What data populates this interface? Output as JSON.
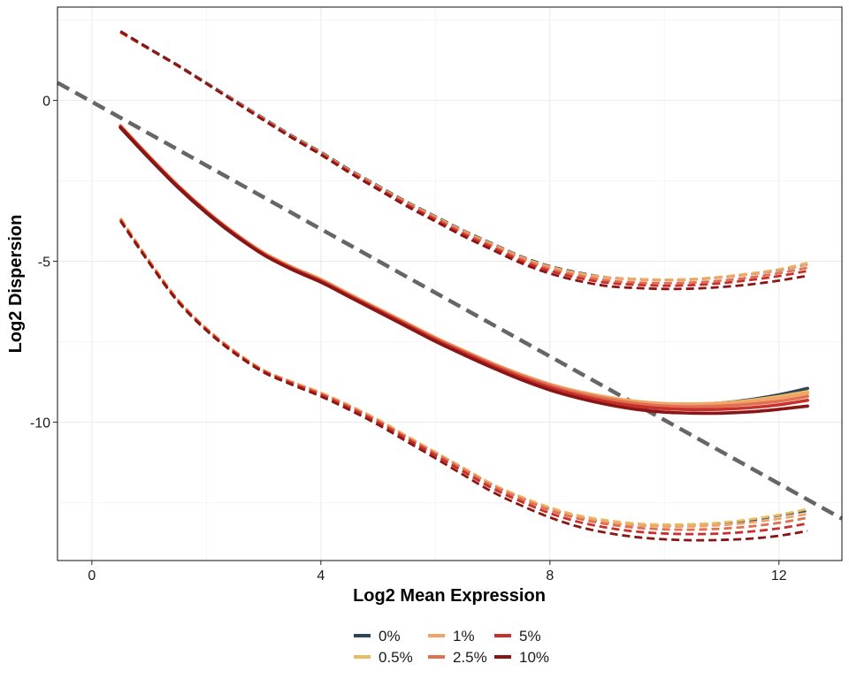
{
  "chart_data": {
    "type": "line",
    "xlabel": "Log2 Mean Expression",
    "ylabel": "Log2 Dispersion",
    "xlim": [
      -0.6,
      13.1
    ],
    "ylim": [
      -14.3,
      2.9
    ],
    "x_ticks": [
      0,
      4,
      8,
      12
    ],
    "x_tick_labels": [
      "0",
      "4",
      "8",
      "12"
    ],
    "y_ticks": [
      0,
      -5,
      -10
    ],
    "y_tick_labels": [
      "0",
      "-5",
      "-10"
    ],
    "grid": true,
    "legend_position": "bottom",
    "reference_line": {
      "style": "dashed",
      "color": "#666666",
      "points": [
        [
          -0.6,
          0.55
        ],
        [
          13.1,
          -13.0
        ]
      ]
    },
    "x": [
      0.5,
      1,
      1.5,
      2,
      2.5,
      3,
      3.5,
      4,
      4.5,
      5,
      5.5,
      6,
      6.5,
      7,
      7.5,
      8,
      8.5,
      9,
      9.5,
      10,
      10.5,
      11,
      11.5,
      12,
      12.5
    ],
    "series": [
      {
        "name": "0%",
        "color": "#2d4557",
        "fit": [
          -0.85,
          -1.8,
          -2.7,
          -3.5,
          -4.2,
          -4.78,
          -5.22,
          -5.6,
          -6.05,
          -6.5,
          -6.95,
          -7.4,
          -7.8,
          -8.2,
          -8.55,
          -8.85,
          -9.08,
          -9.25,
          -9.38,
          -9.45,
          -9.45,
          -9.4,
          -9.3,
          -9.15,
          -8.95
        ],
        "upper": [
          2.15,
          1.62,
          1.1,
          0.55,
          0.0,
          -0.55,
          -1.1,
          -1.6,
          -2.15,
          -2.65,
          -3.15,
          -3.6,
          -4.05,
          -4.45,
          -4.85,
          -5.15,
          -5.35,
          -5.5,
          -5.55,
          -5.58,
          -5.56,
          -5.5,
          -5.4,
          -5.28,
          -5.1
        ],
        "lower": [
          -3.7,
          -5.0,
          -6.2,
          -7.1,
          -7.8,
          -8.4,
          -8.75,
          -9.1,
          -9.5,
          -9.95,
          -10.45,
          -10.95,
          -11.45,
          -11.95,
          -12.35,
          -12.7,
          -12.95,
          -13.12,
          -13.2,
          -13.22,
          -13.2,
          -13.15,
          -13.05,
          -12.9,
          -12.75
        ]
      },
      {
        "name": "0.5%",
        "color": "#eabd63",
        "fit": [
          -0.8,
          -1.75,
          -2.65,
          -3.45,
          -4.15,
          -4.75,
          -5.2,
          -5.58,
          -6.03,
          -6.48,
          -6.92,
          -7.38,
          -7.78,
          -8.18,
          -8.52,
          -8.82,
          -9.05,
          -9.22,
          -9.35,
          -9.42,
          -9.43,
          -9.4,
          -9.32,
          -9.2,
          -9.05
        ],
        "upper": [
          2.12,
          1.6,
          1.08,
          0.53,
          -0.02,
          -0.57,
          -1.12,
          -1.62,
          -2.17,
          -2.67,
          -3.17,
          -3.62,
          -4.07,
          -4.47,
          -4.87,
          -5.17,
          -5.37,
          -5.5,
          -5.55,
          -5.57,
          -5.55,
          -5.48,
          -5.38,
          -5.25,
          -5.05
        ],
        "lower": [
          -3.65,
          -4.97,
          -6.18,
          -7.08,
          -7.8,
          -8.38,
          -8.75,
          -9.08,
          -9.48,
          -9.92,
          -10.43,
          -10.93,
          -11.43,
          -11.93,
          -12.32,
          -12.65,
          -12.9,
          -13.05,
          -13.15,
          -13.18,
          -13.17,
          -13.12,
          -13.02,
          -12.88,
          -12.7
        ]
      },
      {
        "name": "1%",
        "color": "#f0a469",
        "fit": [
          -0.78,
          -1.73,
          -2.63,
          -3.43,
          -4.13,
          -4.73,
          -5.18,
          -5.56,
          -6.02,
          -6.47,
          -6.92,
          -7.37,
          -7.78,
          -8.17,
          -8.52,
          -8.82,
          -9.05,
          -9.23,
          -9.36,
          -9.43,
          -9.44,
          -9.42,
          -9.35,
          -9.25,
          -9.1
        ],
        "upper": [
          2.1,
          1.59,
          1.07,
          0.52,
          -0.03,
          -0.58,
          -1.13,
          -1.63,
          -2.18,
          -2.68,
          -3.18,
          -3.63,
          -4.08,
          -4.48,
          -4.88,
          -5.18,
          -5.38,
          -5.52,
          -5.57,
          -5.59,
          -5.57,
          -5.5,
          -5.4,
          -5.27,
          -5.1
        ],
        "lower": [
          -3.68,
          -4.98,
          -6.19,
          -7.09,
          -7.8,
          -8.39,
          -8.76,
          -9.1,
          -9.5,
          -9.94,
          -10.45,
          -10.95,
          -11.45,
          -11.95,
          -12.34,
          -12.68,
          -12.94,
          -13.1,
          -13.2,
          -13.24,
          -13.24,
          -13.2,
          -13.12,
          -13.0,
          -12.85
        ]
      },
      {
        "name": "2.5%",
        "color": "#e07052",
        "fit": [
          -0.8,
          -1.75,
          -2.65,
          -3.45,
          -4.15,
          -4.76,
          -5.21,
          -5.59,
          -6.05,
          -6.5,
          -6.95,
          -7.4,
          -7.81,
          -8.2,
          -8.56,
          -8.86,
          -9.1,
          -9.28,
          -9.42,
          -9.5,
          -9.52,
          -9.5,
          -9.44,
          -9.35,
          -9.2
        ],
        "upper": [
          2.12,
          1.6,
          1.08,
          0.52,
          -0.03,
          -0.58,
          -1.13,
          -1.64,
          -2.19,
          -2.7,
          -3.2,
          -3.66,
          -4.12,
          -4.53,
          -4.93,
          -5.24,
          -5.45,
          -5.6,
          -5.66,
          -5.68,
          -5.66,
          -5.6,
          -5.5,
          -5.37,
          -5.2
        ],
        "lower": [
          -3.7,
          -5.0,
          -6.2,
          -7.1,
          -7.82,
          -8.4,
          -8.78,
          -9.12,
          -9.52,
          -9.97,
          -10.48,
          -10.98,
          -11.49,
          -11.99,
          -12.39,
          -12.74,
          -13.0,
          -13.17,
          -13.28,
          -13.33,
          -13.34,
          -13.31,
          -13.24,
          -13.13,
          -12.97
        ]
      },
      {
        "name": "5%",
        "color": "#c8302c",
        "fit": [
          -0.82,
          -1.77,
          -2.67,
          -3.47,
          -4.17,
          -4.78,
          -5.23,
          -5.62,
          -6.08,
          -6.53,
          -6.98,
          -7.44,
          -7.85,
          -8.25,
          -8.61,
          -8.92,
          -9.17,
          -9.36,
          -9.5,
          -9.58,
          -9.61,
          -9.6,
          -9.55,
          -9.46,
          -9.32
        ],
        "upper": [
          2.13,
          1.6,
          1.08,
          0.52,
          -0.04,
          -0.6,
          -1.15,
          -1.66,
          -2.22,
          -2.73,
          -3.24,
          -3.71,
          -4.17,
          -4.58,
          -4.99,
          -5.3,
          -5.52,
          -5.67,
          -5.73,
          -5.76,
          -5.74,
          -5.68,
          -5.58,
          -5.46,
          -5.3
        ],
        "lower": [
          -3.72,
          -5.02,
          -6.22,
          -7.12,
          -7.84,
          -8.42,
          -8.8,
          -9.15,
          -9.56,
          -10.01,
          -10.52,
          -11.03,
          -11.55,
          -12.06,
          -12.47,
          -12.83,
          -13.1,
          -13.28,
          -13.4,
          -13.46,
          -13.48,
          -13.46,
          -13.4,
          -13.3,
          -13.15
        ]
      },
      {
        "name": "10%",
        "color": "#8b1414",
        "fit": [
          -0.84,
          -1.79,
          -2.69,
          -3.49,
          -4.19,
          -4.8,
          -5.26,
          -5.65,
          -6.11,
          -6.57,
          -7.03,
          -7.49,
          -7.91,
          -8.31,
          -8.68,
          -9.0,
          -9.25,
          -9.45,
          -9.6,
          -9.69,
          -9.72,
          -9.72,
          -9.68,
          -9.6,
          -9.5
        ],
        "upper": [
          2.14,
          1.61,
          1.08,
          0.52,
          -0.05,
          -0.62,
          -1.17,
          -1.69,
          -2.25,
          -2.77,
          -3.29,
          -3.76,
          -4.23,
          -4.65,
          -5.06,
          -5.38,
          -5.61,
          -5.77,
          -5.83,
          -5.86,
          -5.85,
          -5.8,
          -5.72,
          -5.6,
          -5.45
        ],
        "lower": [
          -3.75,
          -5.05,
          -6.25,
          -7.15,
          -7.87,
          -8.45,
          -8.84,
          -9.2,
          -9.62,
          -10.08,
          -10.6,
          -11.12,
          -11.65,
          -12.17,
          -12.59,
          -12.96,
          -13.25,
          -13.44,
          -13.57,
          -13.64,
          -13.67,
          -13.66,
          -13.62,
          -13.53,
          -13.38
        ]
      }
    ]
  }
}
